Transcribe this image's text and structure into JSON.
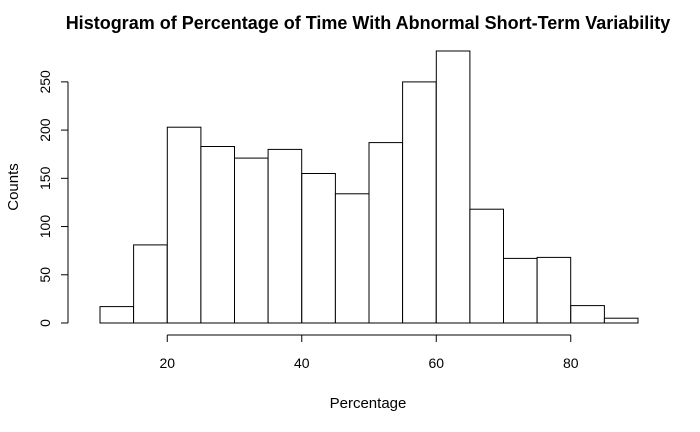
{
  "chart_data": {
    "type": "bar",
    "title": "Histogram of Percentage of Time With Abnormal Short-Term Variability",
    "xlabel": "Percentage",
    "ylabel": "Counts",
    "bins": [
      {
        "from": 10,
        "to": 15,
        "count": 17
      },
      {
        "from": 15,
        "to": 20,
        "count": 81
      },
      {
        "from": 20,
        "to": 25,
        "count": 203
      },
      {
        "from": 25,
        "to": 30,
        "count": 183
      },
      {
        "from": 30,
        "to": 35,
        "count": 171
      },
      {
        "from": 35,
        "to": 40,
        "count": 180
      },
      {
        "from": 40,
        "to": 45,
        "count": 155
      },
      {
        "from": 45,
        "to": 50,
        "count": 134
      },
      {
        "from": 50,
        "to": 55,
        "count": 187
      },
      {
        "from": 55,
        "to": 60,
        "count": 250
      },
      {
        "from": 60,
        "to": 65,
        "count": 282
      },
      {
        "from": 65,
        "to": 70,
        "count": 118
      },
      {
        "from": 70,
        "to": 75,
        "count": 67
      },
      {
        "from": 75,
        "to": 80,
        "count": 68
      },
      {
        "from": 80,
        "to": 85,
        "count": 18
      },
      {
        "from": 85,
        "to": 90,
        "count": 5
      }
    ],
    "xticks": [
      20,
      40,
      60,
      80
    ],
    "yticks": [
      0,
      50,
      100,
      150,
      200,
      250
    ],
    "xlim": [
      10,
      90
    ],
    "ylim": [
      0,
      282
    ],
    "grid": false,
    "colors": {
      "bar_fill": "#ffffff",
      "bar_stroke": "#000000"
    }
  }
}
